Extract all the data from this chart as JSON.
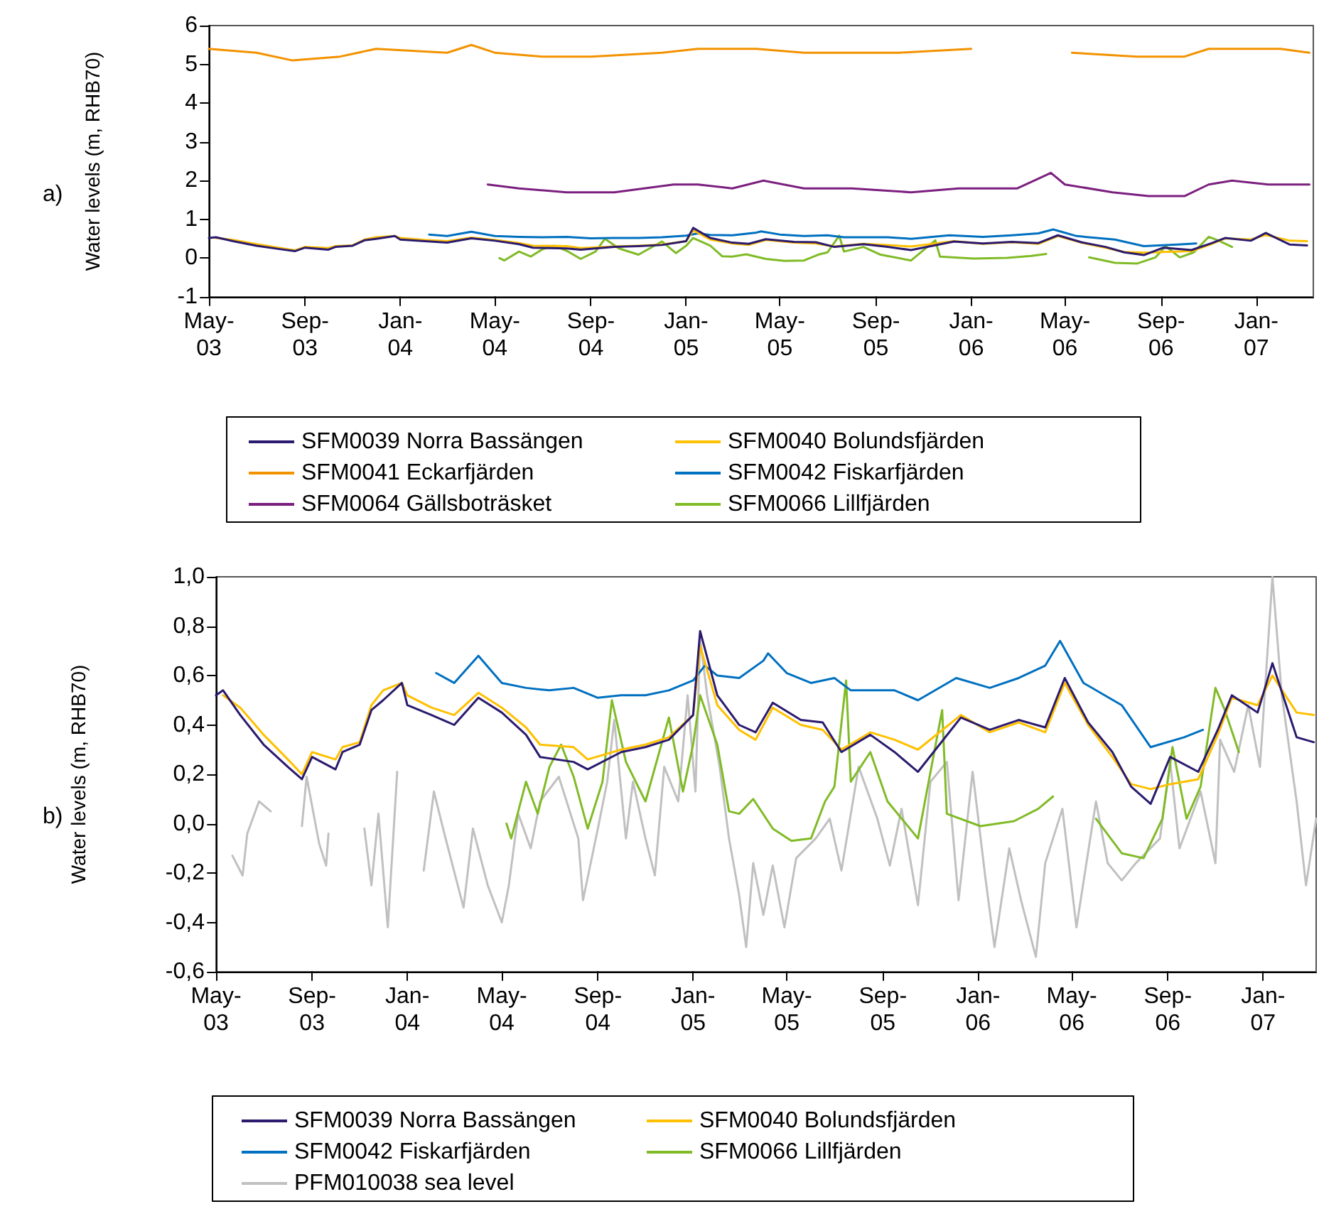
{
  "chart_data": [
    {
      "type": "line",
      "title": "a)",
      "ylabel": "Water levels (m, RHB70)",
      "legend": "bottom",
      "xlim": [
        "2003-05-01",
        "2007-03-15"
      ],
      "ylim": [
        -1,
        6
      ],
      "yticks": [
        -1,
        0,
        1,
        2,
        3,
        4,
        5,
        6
      ],
      "xticks": [
        {
          "value": "2003-05-01",
          "label": "May-03"
        },
        {
          "value": "2003-09-01",
          "label": "Sep-03"
        },
        {
          "value": "2004-01-01",
          "label": "Jan-04"
        },
        {
          "value": "2004-05-01",
          "label": "May-04"
        },
        {
          "value": "2004-09-01",
          "label": "Sep-04"
        },
        {
          "value": "2005-01-01",
          "label": "Jan-05"
        },
        {
          "value": "2005-05-01",
          "label": "May-05"
        },
        {
          "value": "2005-09-01",
          "label": "Sep-05"
        },
        {
          "value": "2006-01-01",
          "label": "Jan-06"
        },
        {
          "value": "2006-05-01",
          "label": "May-06"
        },
        {
          "value": "2006-09-01",
          "label": "Sep-06"
        },
        {
          "value": "2007-01-01",
          "label": "Jan-07"
        }
      ],
      "series": [
        {
          "name": "SFM0039 Norra Bassängen",
          "color": "#2b1a6e",
          "x": [
            "2003-05-01",
            "2003-05-10",
            "2003-06-01",
            "2003-07-01",
            "2003-08-01",
            "2003-08-19",
            "2003-09-01",
            "2003-10-01",
            "2003-10-10",
            "2003-11-01",
            "2003-11-16",
            "2003-12-01",
            "2003-12-25",
            "2004-01-01",
            "2004-02-01",
            "2004-03-01",
            "2004-04-01",
            "2004-05-01",
            "2004-06-01",
            "2004-06-19",
            "2004-08-01",
            "2004-08-19",
            "2004-10-01",
            "2004-11-01",
            "2004-12-01",
            "2005-01-01",
            "2005-01-10",
            "2005-02-01",
            "2005-03-01",
            "2005-03-22",
            "2005-04-13",
            "2005-05-19",
            "2005-06-16",
            "2005-07-10",
            "2005-08-16",
            "2005-09-16",
            "2005-10-16",
            "2005-12-10",
            "2006-01-16",
            "2006-02-22",
            "2006-03-28",
            "2006-04-22",
            "2006-05-22",
            "2006-06-22",
            "2006-07-16",
            "2006-08-10",
            "2006-09-04",
            "2006-10-10",
            "2006-11-04",
            "2006-11-22",
            "2006-12-25",
            "2007-01-13",
            "2007-02-13",
            "2007-03-07"
          ],
          "values": [
            0.52,
            0.54,
            0.44,
            0.32,
            0.23,
            0.18,
            0.27,
            0.22,
            0.29,
            0.32,
            0.46,
            0.5,
            0.57,
            0.48,
            0.44,
            0.4,
            0.51,
            0.45,
            0.36,
            0.27,
            0.25,
            0.22,
            0.29,
            0.31,
            0.34,
            0.44,
            0.78,
            0.52,
            0.4,
            0.37,
            0.49,
            0.42,
            0.41,
            0.29,
            0.36,
            0.29,
            0.21,
            0.43,
            0.38,
            0.42,
            0.39,
            0.59,
            0.41,
            0.29,
            0.15,
            0.08,
            0.27,
            0.21,
            0.38,
            0.52,
            0.45,
            0.65,
            0.35,
            0.33
          ]
        },
        {
          "name": "SFM0040 Bolundsfjärden",
          "color": "#ffc000",
          "x": [
            "2003-05-10",
            "2003-06-01",
            "2003-07-01",
            "2003-08-01",
            "2003-08-19",
            "2003-09-01",
            "2003-10-01",
            "2003-10-10",
            "2003-11-01",
            "2003-11-16",
            "2003-12-01",
            "2003-12-25",
            "2004-01-01",
            "2004-02-01",
            "2004-03-01",
            "2004-04-01",
            "2004-05-01",
            "2004-06-01",
            "2004-06-19",
            "2004-08-01",
            "2004-08-19",
            "2004-10-01",
            "2004-11-01",
            "2004-12-01",
            "2005-01-01",
            "2005-01-10",
            "2005-02-01",
            "2005-03-01",
            "2005-03-22",
            "2005-04-13",
            "2005-05-19",
            "2005-06-16",
            "2005-07-10",
            "2005-08-16",
            "2005-09-16",
            "2005-10-16",
            "2005-12-10",
            "2006-01-16",
            "2006-02-22",
            "2006-03-28",
            "2006-04-22",
            "2006-05-22",
            "2006-06-22",
            "2006-07-16",
            "2006-08-10",
            "2006-09-04",
            "2006-10-10",
            "2006-11-04",
            "2006-11-22",
            "2006-12-25",
            "2007-01-13",
            "2007-02-13",
            "2007-03-07"
          ],
          "values": [
            0.52,
            0.47,
            0.36,
            0.26,
            0.2,
            0.29,
            0.26,
            0.31,
            0.33,
            0.48,
            0.54,
            0.57,
            0.52,
            0.47,
            0.44,
            0.53,
            0.47,
            0.39,
            0.32,
            0.31,
            0.26,
            0.3,
            0.32,
            0.35,
            0.44,
            0.72,
            0.48,
            0.38,
            0.34,
            0.47,
            0.4,
            0.38,
            0.3,
            0.37,
            0.34,
            0.3,
            0.44,
            0.37,
            0.41,
            0.37,
            0.57,
            0.4,
            0.27,
            0.16,
            0.14,
            0.16,
            0.18,
            0.36,
            0.51,
            0.48,
            0.6,
            0.45,
            0.44
          ]
        },
        {
          "name": "SFM0041 Eckarfjärden",
          "color": "#f39200",
          "x": [
            "2003-05-01",
            "2003-07-01",
            "2003-08-16",
            "2003-10-16",
            "2003-12-01",
            "2004-03-01",
            "2004-04-01",
            "2004-05-01",
            "2004-07-01",
            "2004-09-01",
            "2004-12-01",
            "2005-01-16",
            "2005-04-01",
            "2005-06-01",
            "2005-08-01",
            "2005-10-01",
            "2006-01-01",
            "2006-03-01",
            "2006-05-10",
            "2006-08-01",
            "2006-10-01",
            "2006-11-01",
            "2007-02-01",
            "2007-03-10"
          ],
          "values": [
            5.4,
            5.3,
            5.1,
            5.2,
            5.4,
            5.3,
            5.5,
            5.3,
            5.2,
            5.2,
            5.3,
            5.4,
            5.4,
            5.3,
            5.3,
            5.3,
            5.4,
            null,
            5.3,
            5.2,
            5.2,
            5.4,
            5.4,
            5.3
          ]
        },
        {
          "name": "SFM0042 Fiskarfjärden",
          "color": "#0070c0",
          "x": [
            "2004-02-07",
            "2004-03-01",
            "2004-04-01",
            "2004-05-01",
            "2004-06-01",
            "2004-07-01",
            "2004-08-01",
            "2004-09-01",
            "2004-10-01",
            "2004-11-01",
            "2004-12-01",
            "2005-01-01",
            "2005-01-16",
            "2005-02-01",
            "2005-03-01",
            "2005-04-01",
            "2005-04-07",
            "2005-05-01",
            "2005-06-01",
            "2005-07-01",
            "2005-07-22",
            "2005-09-16",
            "2005-10-16",
            "2005-12-04",
            "2006-01-16",
            "2006-02-22",
            "2006-03-28",
            "2006-04-16",
            "2006-05-16",
            "2006-07-04",
            "2006-08-10",
            "2006-09-22",
            "2006-10-16"
          ],
          "values": [
            0.61,
            0.57,
            0.68,
            0.57,
            0.55,
            0.54,
            0.55,
            0.51,
            0.52,
            0.52,
            0.54,
            0.58,
            0.64,
            0.6,
            0.59,
            0.66,
            0.69,
            0.61,
            0.57,
            0.59,
            0.54,
            0.54,
            0.5,
            0.59,
            0.55,
            0.59,
            0.64,
            0.74,
            0.57,
            0.48,
            0.31,
            0.35,
            0.38
          ]
        },
        {
          "name": "SFM0064 Gällsboträsket",
          "color": "#7b1f7f",
          "x": [
            "2004-04-22",
            "2004-06-01",
            "2004-08-01",
            "2004-10-01",
            "2004-12-16",
            "2005-01-16",
            "2005-03-01",
            "2005-04-10",
            "2005-06-01",
            "2005-08-01",
            "2005-10-16",
            "2005-12-16",
            "2006-03-01",
            "2006-04-13",
            "2006-05-01",
            "2006-07-01",
            "2006-08-16",
            "2006-10-01",
            "2006-11-01",
            "2006-12-01",
            "2007-01-16",
            "2007-03-10"
          ],
          "values": [
            1.9,
            1.8,
            1.7,
            1.7,
            1.9,
            1.9,
            1.8,
            2.0,
            1.8,
            1.8,
            1.7,
            1.8,
            1.8,
            2.2,
            1.9,
            1.7,
            1.6,
            1.6,
            1.9,
            2.0,
            1.9,
            1.9
          ]
        },
        {
          "name": "SFM0066 Lillfjärden",
          "color": "#80bb27",
          "x": [
            "2004-05-07",
            "2004-05-13",
            "2004-06-01",
            "2004-06-16",
            "2004-07-01",
            "2004-07-16",
            "2004-08-01",
            "2004-08-19",
            "2004-09-07",
            "2004-09-19",
            "2004-10-07",
            "2004-11-01",
            "2004-12-01",
            "2004-12-19",
            "2005-01-01",
            "2005-01-10",
            "2005-02-01",
            "2005-02-16",
            "2005-03-01",
            "2005-03-19",
            "2005-04-13",
            "2005-05-07",
            "2005-06-01",
            "2005-06-19",
            "2005-07-01",
            "2005-07-16",
            "2005-07-22",
            "2005-08-16",
            "2005-09-07",
            "2005-10-16",
            "2005-11-16",
            "2005-11-22",
            "2006-01-04",
            "2006-02-16",
            "2006-03-19",
            "2006-04-07",
            "2006-05-01",
            "2006-06-01",
            "2006-07-04",
            "2006-08-01",
            "2006-08-25",
            "2006-09-07",
            "2006-09-25",
            "2006-10-13",
            "2006-11-01",
            "2006-11-13",
            "2006-12-01"
          ],
          "values": [
            0.0,
            -0.06,
            0.17,
            0.04,
            0.23,
            0.32,
            0.19,
            -0.02,
            0.17,
            0.5,
            0.25,
            0.09,
            0.43,
            0.13,
            0.32,
            0.52,
            0.32,
            0.05,
            0.04,
            0.1,
            -0.02,
            -0.07,
            -0.06,
            0.09,
            0.15,
            0.58,
            0.17,
            0.29,
            0.09,
            -0.06,
            0.46,
            0.04,
            -0.01,
            0.01,
            0.06,
            0.11,
            null,
            0.02,
            -0.12,
            -0.14,
            0.02,
            0.31,
            0.02,
            0.15,
            0.55,
            0.46,
            0.29
          ]
        }
      ]
    },
    {
      "type": "line",
      "title": "b)",
      "ylabel": "Water levels (m, RHB70)",
      "legend": "bottom",
      "xlim": [
        "2003-05-01",
        "2007-03-10"
      ],
      "ylim": [
        -0.6,
        1.0
      ],
      "yticks": [
        {
          "value": -0.6,
          "label": "-0,6"
        },
        {
          "value": -0.4,
          "label": "-0,4"
        },
        {
          "value": -0.2,
          "label": "-0,2"
        },
        {
          "value": 0,
          "label": "0,0"
        },
        {
          "value": 0.2,
          "label": "0,2"
        },
        {
          "value": 0.4,
          "label": "0,4"
        },
        {
          "value": 0.6,
          "label": "0,6"
        },
        {
          "value": 0.8,
          "label": "0,8"
        },
        {
          "value": 1.0,
          "label": "1,0"
        }
      ],
      "xticks": [
        {
          "value": "2003-05-01",
          "label": "May-03"
        },
        {
          "value": "2003-09-01",
          "label": "Sep-03"
        },
        {
          "value": "2004-01-01",
          "label": "Jan-04"
        },
        {
          "value": "2004-05-01",
          "label": "May-04"
        },
        {
          "value": "2004-09-01",
          "label": "Sep-04"
        },
        {
          "value": "2005-01-01",
          "label": "Jan-05"
        },
        {
          "value": "2005-05-01",
          "label": "May-05"
        },
        {
          "value": "2005-09-01",
          "label": "Sep-05"
        },
        {
          "value": "2006-01-01",
          "label": "Jan-06"
        },
        {
          "value": "2006-05-01",
          "label": "May-06"
        },
        {
          "value": "2006-09-01",
          "label": "Sep-06"
        },
        {
          "value": "2007-01-01",
          "label": "Jan-07"
        }
      ],
      "series": [
        {
          "name": "SFM0039 Norra Bassängen",
          "color": "#2b1a6e",
          "x": [
            "2003-05-01",
            "2003-05-10",
            "2003-06-01",
            "2003-07-01",
            "2003-08-01",
            "2003-08-19",
            "2003-09-01",
            "2003-10-01",
            "2003-10-10",
            "2003-11-01",
            "2003-11-16",
            "2003-12-01",
            "2003-12-25",
            "2004-01-01",
            "2004-02-01",
            "2004-03-01",
            "2004-04-01",
            "2004-05-01",
            "2004-06-01",
            "2004-06-19",
            "2004-08-01",
            "2004-08-19",
            "2004-10-01",
            "2004-11-01",
            "2004-12-01",
            "2005-01-01",
            "2005-01-10",
            "2005-02-01",
            "2005-03-01",
            "2005-03-22",
            "2005-04-13",
            "2005-05-19",
            "2005-06-16",
            "2005-07-10",
            "2005-08-16",
            "2005-09-16",
            "2005-10-16",
            "2005-12-10",
            "2006-01-16",
            "2006-02-22",
            "2006-03-28",
            "2006-04-22",
            "2006-05-22",
            "2006-06-22",
            "2006-07-16",
            "2006-08-10",
            "2006-09-04",
            "2006-10-10",
            "2006-11-04",
            "2006-11-22",
            "2006-12-25",
            "2007-01-13",
            "2007-02-13",
            "2007-03-07"
          ],
          "values": [
            0.52,
            0.54,
            0.44,
            0.32,
            0.23,
            0.18,
            0.27,
            0.22,
            0.29,
            0.32,
            0.46,
            0.5,
            0.57,
            0.48,
            0.44,
            0.4,
            0.51,
            0.45,
            0.36,
            0.27,
            0.25,
            0.22,
            0.29,
            0.31,
            0.34,
            0.44,
            0.78,
            0.52,
            0.4,
            0.37,
            0.49,
            0.42,
            0.41,
            0.29,
            0.36,
            0.29,
            0.21,
            0.43,
            0.38,
            0.42,
            0.39,
            0.59,
            0.41,
            0.29,
            0.15,
            0.08,
            0.27,
            0.21,
            0.38,
            0.52,
            0.45,
            0.65,
            0.35,
            0.33
          ]
        },
        {
          "name": "SFM0040 Bolundsfjärden",
          "color": "#ffc000",
          "x": [
            "2003-05-10",
            "2003-06-01",
            "2003-07-01",
            "2003-08-01",
            "2003-08-19",
            "2003-09-01",
            "2003-10-01",
            "2003-10-10",
            "2003-11-01",
            "2003-11-16",
            "2003-12-01",
            "2003-12-25",
            "2004-01-01",
            "2004-02-01",
            "2004-03-01",
            "2004-04-01",
            "2004-05-01",
            "2004-06-01",
            "2004-06-19",
            "2004-08-01",
            "2004-08-19",
            "2004-10-01",
            "2004-11-01",
            "2004-12-01",
            "2005-01-01",
            "2005-01-10",
            "2005-02-01",
            "2005-03-01",
            "2005-03-22",
            "2005-04-13",
            "2005-05-19",
            "2005-06-16",
            "2005-07-10",
            "2005-08-16",
            "2005-09-16",
            "2005-10-16",
            "2005-12-10",
            "2006-01-16",
            "2006-02-22",
            "2006-03-28",
            "2006-04-22",
            "2006-05-22",
            "2006-06-22",
            "2006-07-16",
            "2006-08-10",
            "2006-09-04",
            "2006-10-10",
            "2006-11-04",
            "2006-11-22",
            "2006-12-25",
            "2007-01-13",
            "2007-02-13",
            "2007-03-07"
          ],
          "values": [
            0.52,
            0.47,
            0.36,
            0.26,
            0.2,
            0.29,
            0.26,
            0.31,
            0.33,
            0.48,
            0.54,
            0.57,
            0.52,
            0.47,
            0.44,
            0.53,
            0.47,
            0.39,
            0.32,
            0.31,
            0.26,
            0.3,
            0.32,
            0.35,
            0.44,
            0.72,
            0.48,
            0.38,
            0.34,
            0.47,
            0.4,
            0.38,
            0.3,
            0.37,
            0.34,
            0.3,
            0.44,
            0.37,
            0.41,
            0.37,
            0.57,
            0.4,
            0.27,
            0.16,
            0.14,
            0.16,
            0.18,
            0.36,
            0.51,
            0.48,
            0.6,
            0.45,
            0.44
          ]
        },
        {
          "name": "SFM0042 Fiskarfjärden",
          "color": "#0070c0",
          "x": [
            "2004-02-07",
            "2004-03-01",
            "2004-04-01",
            "2004-05-01",
            "2004-06-01",
            "2004-07-01",
            "2004-08-01",
            "2004-09-01",
            "2004-10-01",
            "2004-11-01",
            "2004-12-01",
            "2005-01-01",
            "2005-01-16",
            "2005-02-01",
            "2005-03-01",
            "2005-04-01",
            "2005-04-07",
            "2005-05-01",
            "2005-06-01",
            "2005-07-01",
            "2005-07-22",
            "2005-09-16",
            "2005-10-16",
            "2005-12-04",
            "2006-01-16",
            "2006-02-22",
            "2006-03-28",
            "2006-04-16",
            "2006-05-16",
            "2006-07-04",
            "2006-08-10",
            "2006-09-22",
            "2006-10-16"
          ],
          "values": [
            0.61,
            0.57,
            0.68,
            0.57,
            0.55,
            0.54,
            0.55,
            0.51,
            0.52,
            0.52,
            0.54,
            0.58,
            0.64,
            0.6,
            0.59,
            0.66,
            0.69,
            0.61,
            0.57,
            0.59,
            0.54,
            0.54,
            0.5,
            0.59,
            0.55,
            0.59,
            0.64,
            0.74,
            0.57,
            0.48,
            0.31,
            0.35,
            0.38
          ]
        },
        {
          "name": "SFM0066 Lillfjärden",
          "color": "#80bb27",
          "x": [
            "2004-05-07",
            "2004-05-13",
            "2004-06-01",
            "2004-06-16",
            "2004-07-01",
            "2004-07-16",
            "2004-08-01",
            "2004-08-19",
            "2004-09-07",
            "2004-09-19",
            "2004-10-07",
            "2004-11-01",
            "2004-12-01",
            "2004-12-19",
            "2005-01-01",
            "2005-01-10",
            "2005-02-01",
            "2005-02-16",
            "2005-03-01",
            "2005-03-19",
            "2005-04-13",
            "2005-05-07",
            "2005-06-01",
            "2005-06-19",
            "2005-07-01",
            "2005-07-16",
            "2005-07-22",
            "2005-08-16",
            "2005-09-07",
            "2005-10-16",
            "2005-11-16",
            "2005-11-22",
            "2006-01-04",
            "2006-02-16",
            "2006-03-19",
            "2006-04-07",
            "2006-05-01",
            "2006-06-01",
            "2006-07-04",
            "2006-08-01",
            "2006-08-25",
            "2006-09-07",
            "2006-09-25",
            "2006-10-13",
            "2006-11-01",
            "2006-11-13",
            "2006-12-01"
          ],
          "values": [
            0.0,
            -0.06,
            0.17,
            0.04,
            0.23,
            0.32,
            0.19,
            -0.02,
            0.17,
            0.5,
            0.25,
            0.09,
            0.43,
            0.13,
            0.32,
            0.52,
            0.32,
            0.05,
            0.04,
            0.1,
            -0.02,
            -0.07,
            -0.06,
            0.09,
            0.15,
            0.58,
            0.17,
            0.29,
            0.09,
            -0.06,
            0.46,
            0.04,
            -0.01,
            0.01,
            0.06,
            0.11,
            null,
            0.02,
            -0.12,
            -0.14,
            0.02,
            0.31,
            0.02,
            0.15,
            0.55,
            0.46,
            0.29
          ]
        },
        {
          "name": "PFM010038 sea level",
          "color": "#c0c0c0",
          "x": [
            "2003-05-22",
            "2003-06-04",
            "2003-06-10",
            "2003-06-25",
            "2003-07-10",
            "2003-07-25",
            "2003-08-19",
            "2003-08-25",
            "2003-09-10",
            "2003-09-19",
            "2003-09-22",
            "2003-10-16",
            "2003-11-07",
            "2003-11-16",
            "2003-11-25",
            "2003-12-07",
            "2003-12-19",
            "2004-01-07",
            "2004-01-22",
            "2004-02-04",
            "2004-02-19",
            "2004-03-13",
            "2004-03-25",
            "2004-04-13",
            "2004-05-01",
            "2004-05-10",
            "2004-05-22",
            "2004-06-07",
            "2004-06-19",
            "2004-07-13",
            "2004-08-07",
            "2004-08-13",
            "2004-09-01",
            "2004-09-13",
            "2004-09-22",
            "2004-10-07",
            "2004-10-16",
            "2004-11-01",
            "2004-11-13",
            "2004-11-25",
            "2004-12-13",
            "2004-12-25",
            "2005-01-04",
            "2005-01-10",
            "2005-01-19",
            "2005-02-04",
            "2005-02-16",
            "2005-03-01",
            "2005-03-10",
            "2005-03-19",
            "2005-04-01",
            "2005-04-13",
            "2005-04-28",
            "2005-05-13",
            "2005-06-07",
            "2005-06-25",
            "2005-07-10",
            "2005-08-01",
            "2005-08-25",
            "2005-09-10",
            "2005-09-25",
            "2005-10-16",
            "2005-11-01",
            "2005-11-22",
            "2005-12-07",
            "2005-12-25",
            "2006-01-10",
            "2006-01-22",
            "2006-02-10",
            "2006-02-25",
            "2006-03-16",
            "2006-03-28",
            "2006-04-19",
            "2006-05-07",
            "2006-06-01",
            "2006-06-16",
            "2006-07-04",
            "2006-07-22",
            "2006-08-22",
            "2006-09-04",
            "2006-09-16",
            "2006-10-13",
            "2006-11-01",
            "2006-11-07",
            "2006-11-25",
            "2006-12-13",
            "2006-12-28",
            "2007-01-13",
            "2007-01-25",
            "2007-02-13",
            "2007-02-25",
            "2007-03-10"
          ],
          "values": [
            -0.13,
            -0.21,
            -0.04,
            0.09,
            0.05,
            null,
            -0.01,
            0.19,
            -0.08,
            -0.17,
            -0.04,
            null,
            -0.02,
            -0.25,
            0.04,
            -0.42,
            0.21,
            null,
            -0.19,
            0.13,
            -0.06,
            -0.34,
            -0.02,
            -0.25,
            -0.4,
            -0.25,
            0.04,
            -0.1,
            0.09,
            0.19,
            -0.06,
            -0.31,
            -0.02,
            0.17,
            0.42,
            -0.06,
            0.17,
            -0.06,
            -0.21,
            0.23,
            0.09,
            0.52,
            0.13,
            0.75,
            0.52,
            0.23,
            -0.06,
            -0.29,
            -0.5,
            -0.16,
            -0.37,
            -0.17,
            -0.42,
            -0.14,
            -0.06,
            0.02,
            -0.19,
            0.23,
            0.02,
            -0.17,
            0.06,
            -0.33,
            0.17,
            0.25,
            -0.31,
            0.21,
            -0.21,
            -0.5,
            -0.1,
            -0.31,
            -0.54,
            -0.16,
            0.06,
            -0.42,
            0.09,
            -0.16,
            -0.23,
            -0.16,
            -0.06,
            0.25,
            -0.1,
            0.13,
            -0.16,
            0.34,
            0.21,
            0.48,
            0.23,
            1.0,
            0.52,
            0.09,
            -0.25,
            0.02
          ]
        }
      ]
    }
  ]
}
